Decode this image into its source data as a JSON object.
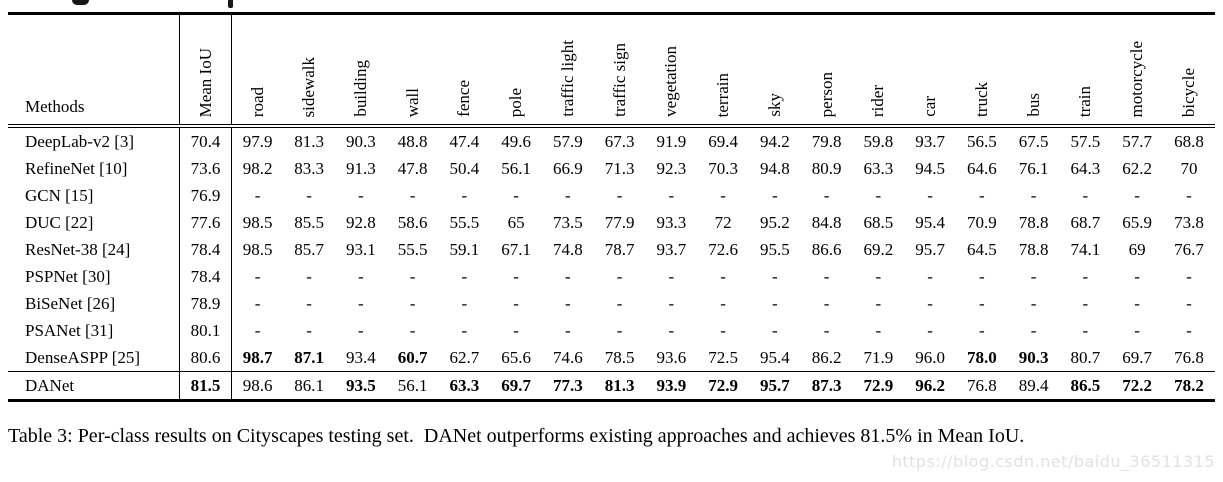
{
  "table": {
    "methods_header": "Methods",
    "columns": [
      "Mean IoU",
      "road",
      "sidewalk",
      "building",
      "wall",
      "fence",
      "pole",
      "traffic light",
      "traffic sign",
      "vegetation",
      "terrain",
      "sky",
      "person",
      "rider",
      "car",
      "truck",
      "bus",
      "train",
      "motorcycle",
      "bicycle"
    ],
    "rows": [
      {
        "method": "DeepLab-v2 [3]",
        "mean_iou": "70.4",
        "mean_bold": false,
        "bold": [],
        "values": [
          "97.9",
          "81.3",
          "90.3",
          "48.8",
          "47.4",
          "49.6",
          "57.9",
          "67.3",
          "91.9",
          "69.4",
          "94.2",
          "79.8",
          "59.8",
          "93.7",
          "56.5",
          "67.5",
          "57.5",
          "57.7",
          "68.8"
        ]
      },
      {
        "method": "RefineNet [10]",
        "mean_iou": "73.6",
        "mean_bold": false,
        "bold": [],
        "values": [
          "98.2",
          "83.3",
          "91.3",
          "47.8",
          "50.4",
          "56.1",
          "66.9",
          "71.3",
          "92.3",
          "70.3",
          "94.8",
          "80.9",
          "63.3",
          "94.5",
          "64.6",
          "76.1",
          "64.3",
          "62.2",
          "70"
        ]
      },
      {
        "method": "GCN [15]",
        "mean_iou": "76.9",
        "mean_bold": false,
        "bold": [],
        "values": [
          "-",
          "-",
          "-",
          "-",
          "-",
          "-",
          "-",
          "-",
          "-",
          "-",
          "-",
          "-",
          "-",
          "-",
          "-",
          "-",
          "-",
          "-",
          "-"
        ]
      },
      {
        "method": "DUC [22]",
        "mean_iou": "77.6",
        "mean_bold": false,
        "bold": [],
        "values": [
          "98.5",
          "85.5",
          "92.8",
          "58.6",
          "55.5",
          "65",
          "73.5",
          "77.9",
          "93.3",
          "72",
          "95.2",
          "84.8",
          "68.5",
          "95.4",
          "70.9",
          "78.8",
          "68.7",
          "65.9",
          "73.8"
        ]
      },
      {
        "method": "ResNet-38 [24]",
        "mean_iou": "78.4",
        "mean_bold": false,
        "bold": [],
        "values": [
          "98.5",
          "85.7",
          "93.1",
          "55.5",
          "59.1",
          "67.1",
          "74.8",
          "78.7",
          "93.7",
          "72.6",
          "95.5",
          "86.6",
          "69.2",
          "95.7",
          "64.5",
          "78.8",
          "74.1",
          "69",
          "76.7"
        ]
      },
      {
        "method": "PSPNet [30]",
        "mean_iou": "78.4",
        "mean_bold": false,
        "bold": [],
        "values": [
          "-",
          "-",
          "-",
          "-",
          "-",
          "-",
          "-",
          "-",
          "-",
          "-",
          "-",
          "-",
          "-",
          "-",
          "-",
          "-",
          "-",
          "-",
          "-"
        ]
      },
      {
        "method": "BiSeNet [26]",
        "mean_iou": "78.9",
        "mean_bold": false,
        "bold": [],
        "values": [
          "-",
          "-",
          "-",
          "-",
          "-",
          "-",
          "-",
          "-",
          "-",
          "-",
          "-",
          "-",
          "-",
          "-",
          "-",
          "-",
          "-",
          "-",
          "-"
        ]
      },
      {
        "method": "PSANet [31]",
        "mean_iou": "80.1",
        "mean_bold": false,
        "bold": [],
        "values": [
          "-",
          "-",
          "-",
          "-",
          "-",
          "-",
          "-",
          "-",
          "-",
          "-",
          "-",
          "-",
          "-",
          "-",
          "-",
          "-",
          "-",
          "-",
          "-"
        ]
      },
      {
        "method": "DenseASPP [25]",
        "mean_iou": "80.6",
        "mean_bold": false,
        "bold": [
          0,
          1,
          3,
          14,
          15
        ],
        "values": [
          "98.7",
          "87.1",
          "93.4",
          "60.7",
          "62.7",
          "65.6",
          "74.6",
          "78.5",
          "93.6",
          "72.5",
          "95.4",
          "86.2",
          "71.9",
          "96.0",
          "78.0",
          "90.3",
          "80.7",
          "69.7",
          "76.8"
        ]
      },
      {
        "method": "DANet",
        "mean_iou": "81.5",
        "mean_bold": true,
        "separator_above": true,
        "bold": [
          2,
          4,
          5,
          6,
          7,
          8,
          9,
          10,
          11,
          12,
          13,
          16,
          17,
          18
        ],
        "values": [
          "98.6",
          "86.1",
          "93.5",
          "56.1",
          "63.3",
          "69.7",
          "77.3",
          "81.3",
          "93.9",
          "72.9",
          "95.7",
          "87.3",
          "72.9",
          "96.2",
          "76.8",
          "89.4",
          "86.5",
          "72.2",
          "78.2"
        ]
      }
    ]
  },
  "caption": "Table 3: Per-class results on Cityscapes testing set.  DANet outperforms existing approaches and achieves 81.5% in Mean IoU.",
  "watermark": "https://blog.csdn.net/baidu_36511315"
}
